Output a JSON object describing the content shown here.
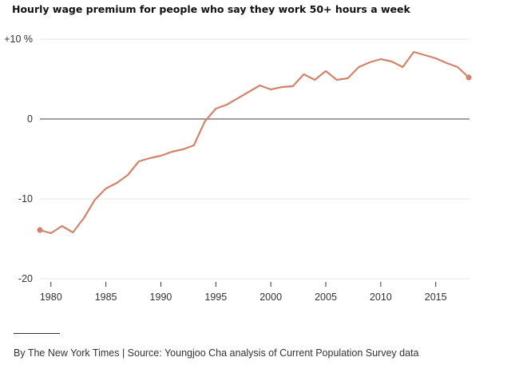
{
  "chart_data": {
    "type": "line",
    "title": "Hourly wage premium for people who say they work 50+ hours a week",
    "xlabel": "",
    "ylabel": "",
    "xlim": [
      1979,
      2018
    ],
    "ylim": [
      -20,
      10
    ],
    "x_ticks": [
      1980,
      1985,
      1990,
      1995,
      2000,
      2005,
      2010,
      2015
    ],
    "y_ticks": [
      {
        "value": 10,
        "label": "+10 %"
      },
      {
        "value": 0,
        "label": "0"
      },
      {
        "value": -10,
        "label": "-10"
      },
      {
        "value": -20,
        "label": "-20"
      }
    ],
    "grid": true,
    "series": [
      {
        "name": "Hourly wage premium",
        "color": "#d0846a",
        "x": [
          1979,
          1980,
          1981,
          1982,
          1983,
          1984,
          1985,
          1986,
          1987,
          1988,
          1989,
          1990,
          1991,
          1992,
          1993,
          1994,
          1995,
          1996,
          1997,
          1998,
          1999,
          2000,
          2001,
          2002,
          2003,
          2004,
          2005,
          2006,
          2007,
          2008,
          2009,
          2010,
          2011,
          2012,
          2013,
          2014,
          2015,
          2016,
          2017,
          2018
        ],
        "values": [
          -13.9,
          -14.3,
          -13.4,
          -14.2,
          -12.4,
          -10.1,
          -8.7,
          -8.0,
          -7.0,
          -5.3,
          -4.9,
          -4.6,
          -4.1,
          -3.8,
          -3.3,
          -0.3,
          1.3,
          1.8,
          2.6,
          3.4,
          4.2,
          3.7,
          4.0,
          4.1,
          5.6,
          4.9,
          6.0,
          4.9,
          5.1,
          6.5,
          7.1,
          7.5,
          7.2,
          6.5,
          8.4,
          8.0,
          7.6,
          7.0,
          6.5,
          5.2
        ]
      }
    ],
    "endpoint_markers": true
  },
  "footer": {
    "source": "By The New York Times | Source: Youngjoo Cha analysis of Current Population Survey data"
  },
  "colors": {
    "line": "#d0846a",
    "grid": "#e5e5e5",
    "zero_line": "#666666",
    "text": "#333333"
  }
}
